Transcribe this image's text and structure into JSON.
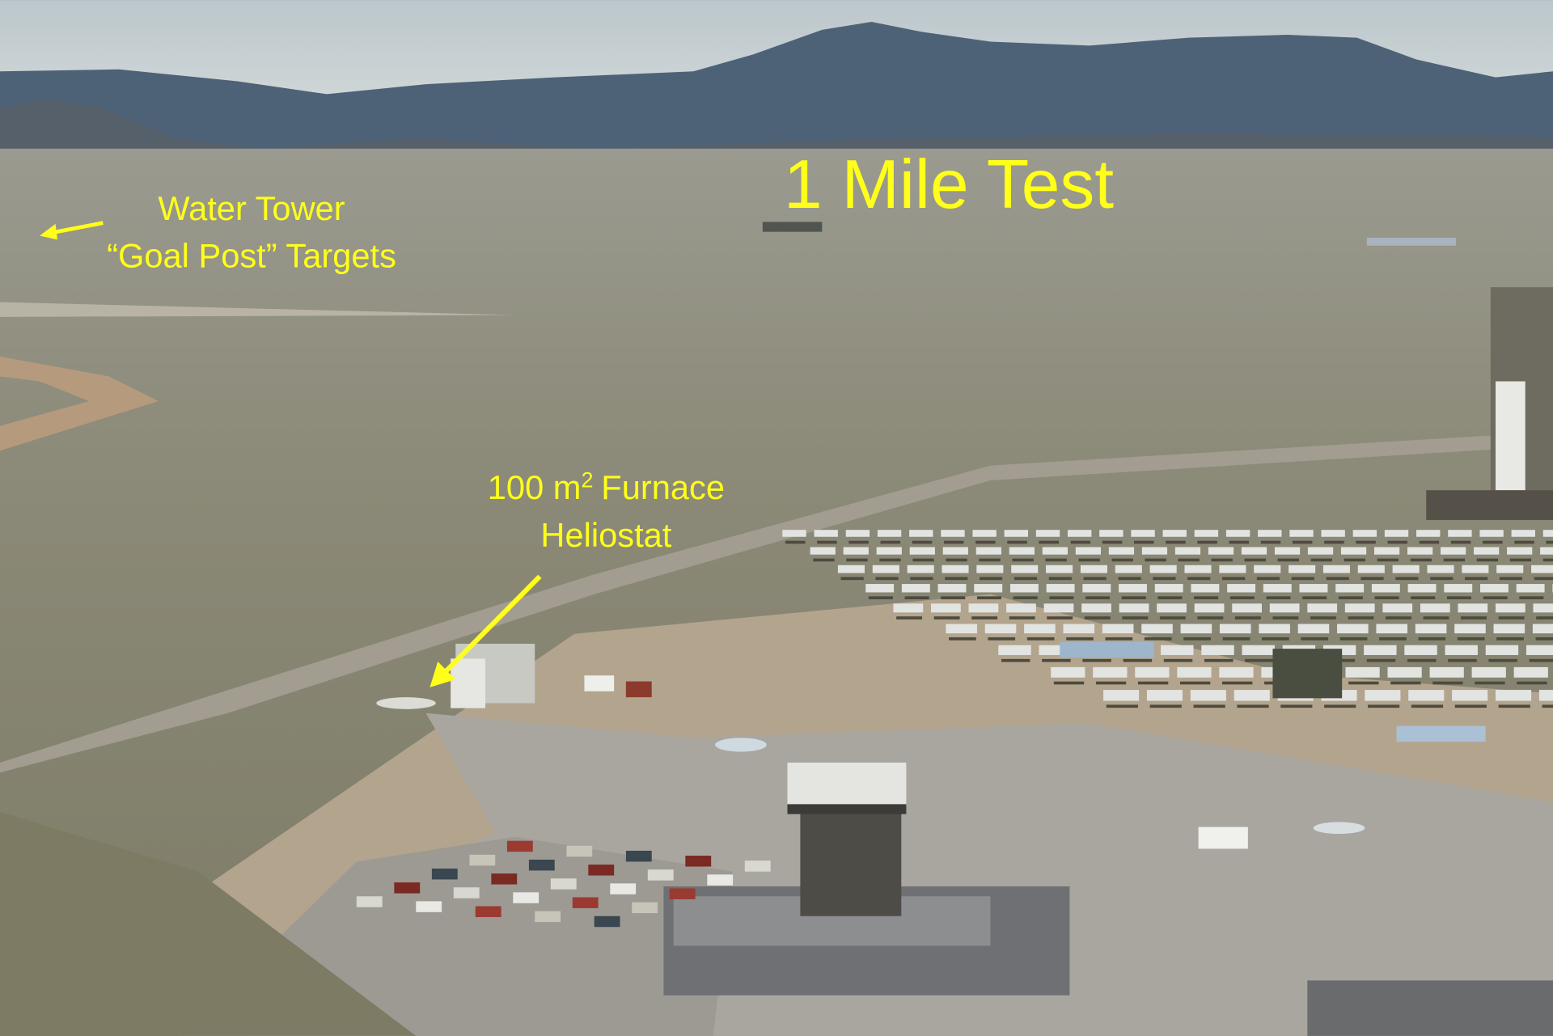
{
  "title": "1 Mile Test",
  "annotations": {
    "water_tower": {
      "line1": "Water Tower",
      "line2": "“Goal Post” Targets"
    },
    "heliostat": {
      "base": "100 m",
      "sup": "2",
      "rest": "Furnace",
      "line2": "Heliostat"
    }
  }
}
